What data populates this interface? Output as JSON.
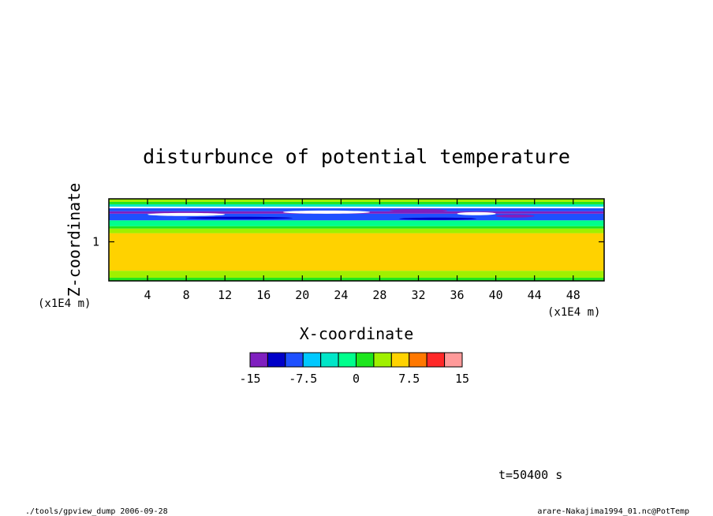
{
  "chart_data": {
    "type": "heatmap",
    "title": "disturbunce of potential temperature",
    "xlabel": "X-coordinate",
    "ylabel": "Z-coordinate",
    "x_unit": "(x1E4 m)",
    "z_unit": "(x1E4 m)",
    "xlim": [
      0,
      51.2
    ],
    "zlim": [
      0,
      2.1
    ],
    "x_ticks": [
      4,
      8,
      12,
      16,
      20,
      24,
      28,
      32,
      36,
      40,
      44,
      48
    ],
    "x_tick_labels": [
      "4",
      "8",
      "12",
      "16",
      "20",
      "24",
      "28",
      "32",
      "36",
      "40",
      "44",
      "48"
    ],
    "z_ticks": [
      1
    ],
    "z_tick_labels": [
      "1"
    ],
    "colorbar": {
      "levels": [
        -15,
        -12.5,
        -10,
        -7.5,
        -5,
        -2.5,
        0,
        2.5,
        5,
        7.5,
        10,
        12.5,
        15
      ],
      "colors": [
        "#7f1fbf",
        "#0000c8",
        "#1e50ff",
        "#00c8ff",
        "#00e6c8",
        "#00ff8c",
        "#1ee61e",
        "#a0f000",
        "#ffd200",
        "#ff7800",
        "#ff2828",
        "#ff9a9a"
      ],
      "tick_values": [
        -15,
        -7.5,
        0,
        7.5,
        15
      ],
      "tick_labels": [
        "-15",
        "-7.5",
        "0",
        "7.5",
        "15"
      ]
    },
    "bands": [
      {
        "z0": 0.0,
        "z1": 0.08,
        "value": 1.2
      },
      {
        "z0": 0.08,
        "z1": 0.26,
        "value": 3.5
      },
      {
        "z0": 0.26,
        "z1": 1.22,
        "value": 6.2
      },
      {
        "z0": 1.22,
        "z1": 1.34,
        "value": 3.6
      },
      {
        "z0": 1.34,
        "z1": 1.4,
        "value": 1.2
      },
      {
        "z0": 1.4,
        "z1": 1.55,
        "value": -1.8
      },
      {
        "z0": 1.55,
        "z1": 1.72,
        "value": -8.5
      },
      {
        "z0": 1.72,
        "z1": 1.78,
        "value": -13.8
      },
      {
        "z0": 1.78,
        "z1": 1.86,
        "value": -9.2
      },
      {
        "z0": 1.86,
        "z1": 1.9,
        "value": -16
      },
      {
        "z0": 1.9,
        "z1": 1.96,
        "value": -4.2
      },
      {
        "z0": 1.96,
        "z1": 2.02,
        "value": 1.0
      },
      {
        "z0": 2.02,
        "z1": 2.1,
        "value": 3.2
      }
    ],
    "features": [
      {
        "x0": 4,
        "x1": 12,
        "z0": 1.66,
        "z1": 1.74,
        "value": -16
      },
      {
        "x0": 18,
        "x1": 27,
        "z0": 1.72,
        "z1": 1.8,
        "value": -16
      },
      {
        "x0": 29,
        "x1": 35,
        "z0": 1.76,
        "z1": 1.84,
        "value": -13.8
      },
      {
        "x0": 36,
        "x1": 40,
        "z0": 1.68,
        "z1": 1.76,
        "value": -16
      },
      {
        "x0": 40,
        "x1": 44,
        "z0": 1.62,
        "z1": 1.7,
        "value": -13.8
      },
      {
        "x0": 8,
        "x1": 19,
        "z0": 1.58,
        "z1": 1.64,
        "value": -11.2
      },
      {
        "x0": 30,
        "x1": 38,
        "z0": 1.56,
        "z1": 1.62,
        "value": -11.2
      }
    ],
    "time_label": "t=50400 s"
  },
  "footer": {
    "left": "./tools/gpview_dump  2006-09-28",
    "right": "arare-Nakajima1994_01.nc@PotTemp"
  }
}
